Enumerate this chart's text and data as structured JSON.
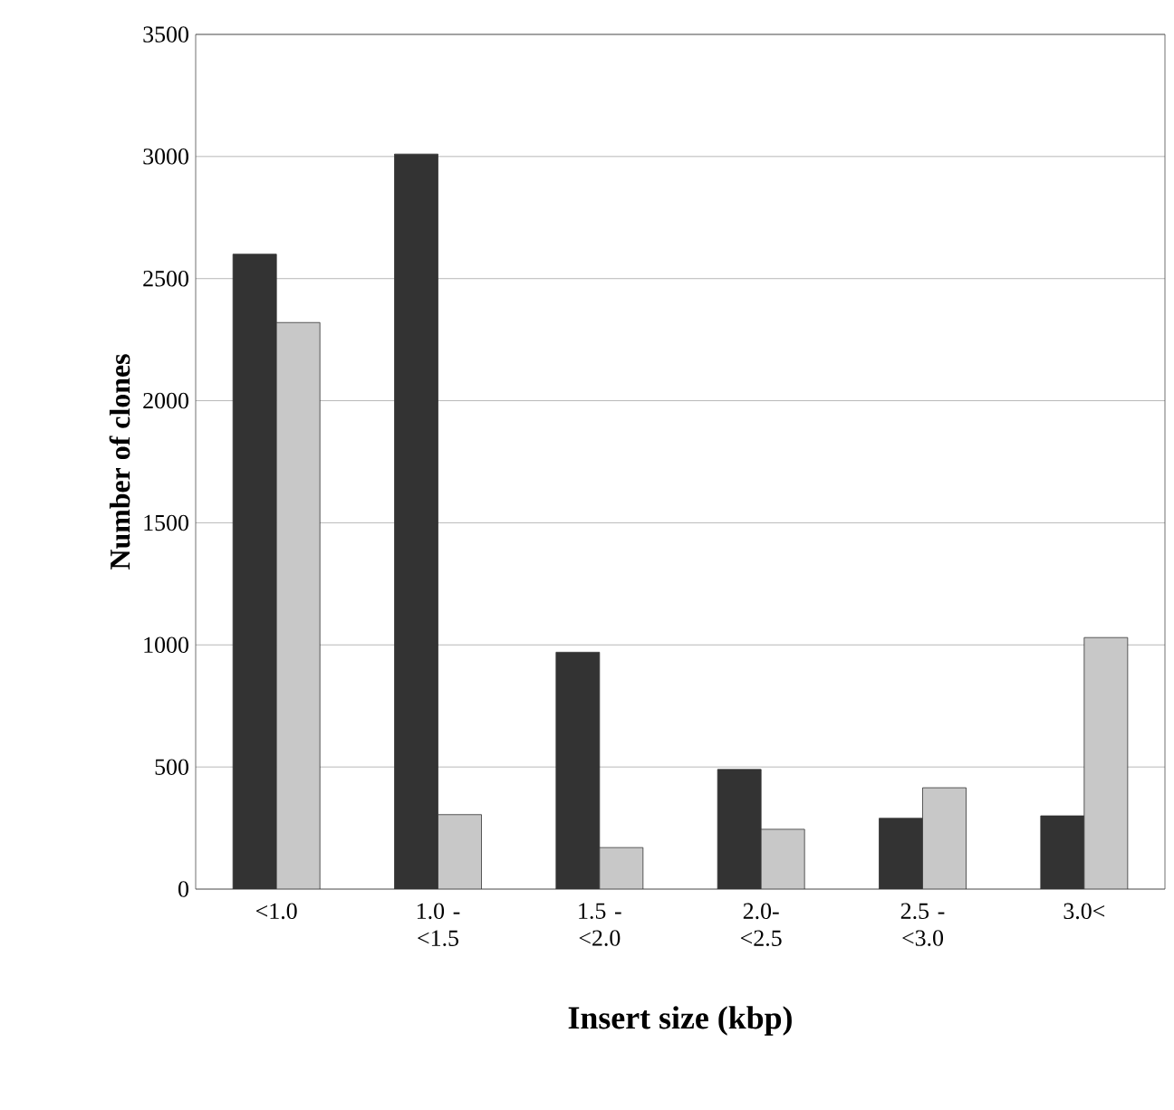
{
  "chart_data": {
    "type": "bar",
    "xlabel": "Insert size (kbp)",
    "ylabel": "Number of clones",
    "categories": [
      "<1.0",
      "1.0 - <1.5",
      "1.5 - <2.0",
      "2.0- <2.5",
      "2.5 - <3.0",
      "3.0<"
    ],
    "series": [
      {
        "color": "#333333",
        "values": [
          2600,
          3010,
          970,
          490,
          290,
          300
        ]
      },
      {
        "color": "#c8c8c8",
        "values": [
          2320,
          305,
          170,
          245,
          415,
          1030
        ]
      }
    ],
    "ylim": [
      0,
      3500
    ],
    "yticks": [
      0,
      500,
      1000,
      1500,
      2000,
      2500,
      3000,
      3500
    ],
    "grid": "y"
  }
}
